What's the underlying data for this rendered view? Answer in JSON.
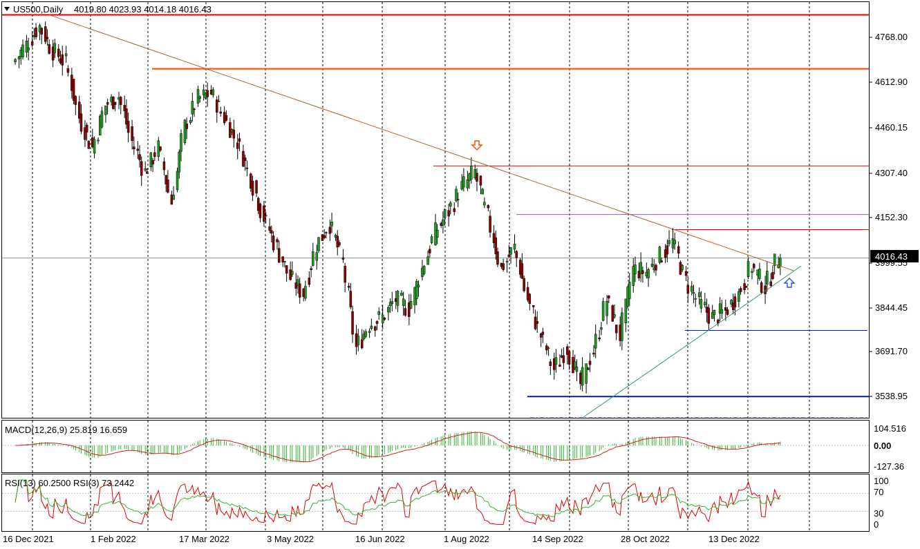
{
  "header": {
    "symbol": "US500,Daily",
    "ohlc": "4019.80 4023.93 4014.18 4016.43"
  },
  "price_scale": {
    "ticks": [
      "4768.00",
      "4612.90",
      "4460.15",
      "4307.40",
      "4152.30",
      "3999.55",
      "3844.45",
      "3691.70",
      "3538.95"
    ],
    "current_label": "4016.43"
  },
  "time_axis": {
    "labels": [
      "16 Dec 2021",
      "1 Feb 2022",
      "17 Mar 2022",
      "3 May 2022",
      "16 Jun 2022",
      "1 Aug 2022",
      "14 Sep 2022",
      "28 Oct 2022",
      "13 Dec 2022"
    ]
  },
  "macd_panel": {
    "title": "MACD(12,26,9) 25.819 16.659",
    "ticks": [
      "104.516",
      "0.00",
      "-127.36"
    ]
  },
  "rsi_panel": {
    "title": "RSI(13) 60.2500  RSI(3) 73.2442",
    "ticks": [
      "100",
      "70",
      "30",
      "0"
    ]
  },
  "colors": {
    "bull": "#1e9e1e",
    "bear": "#8b0000",
    "resistance": "#e00000",
    "support": "#0018c8",
    "trend_down": "#b4642d",
    "trend_up": "#2e9a6e",
    "purple": "#a050e0",
    "macd_hist": "#32b432",
    "macd_signal": "#d21e1e"
  },
  "markers": {
    "down_arrow": "arrow-down-icon",
    "up_arrow": "arrow-up-icon"
  },
  "chart_data": {
    "type": "candlestick",
    "title": "US500,Daily",
    "y_range": [
      3490,
      4860
    ],
    "candles_weekly_closes": [
      {
        "date": "2021-12-16",
        "close": 4660
      },
      {
        "date": "2021-12-23",
        "close": 4720
      },
      {
        "date": "2021-12-30",
        "close": 4780
      },
      {
        "date": "2022-01-06",
        "close": 4700
      },
      {
        "date": "2022-01-13",
        "close": 4660
      },
      {
        "date": "2022-01-20",
        "close": 4480
      },
      {
        "date": "2022-01-27",
        "close": 4380
      },
      {
        "date": "2022-02-03",
        "close": 4520
      },
      {
        "date": "2022-02-10",
        "close": 4550
      },
      {
        "date": "2022-02-17",
        "close": 4400
      },
      {
        "date": "2022-02-24",
        "close": 4300
      },
      {
        "date": "2022-03-03",
        "close": 4380
      },
      {
        "date": "2022-03-10",
        "close": 4200
      },
      {
        "date": "2022-03-17",
        "close": 4450
      },
      {
        "date": "2022-03-24",
        "close": 4540
      },
      {
        "date": "2022-03-31",
        "close": 4560
      },
      {
        "date": "2022-04-07",
        "close": 4480
      },
      {
        "date": "2022-04-14",
        "close": 4400
      },
      {
        "date": "2022-04-21",
        "close": 4280
      },
      {
        "date": "2022-04-28",
        "close": 4150
      },
      {
        "date": "2022-05-05",
        "close": 4050
      },
      {
        "date": "2022-05-12",
        "close": 3950
      },
      {
        "date": "2022-05-19",
        "close": 3900
      },
      {
        "date": "2022-05-26",
        "close": 4060
      },
      {
        "date": "2022-06-02",
        "close": 4130
      },
      {
        "date": "2022-06-09",
        "close": 4000
      },
      {
        "date": "2022-06-16",
        "close": 3720
      },
      {
        "date": "2022-06-23",
        "close": 3800
      },
      {
        "date": "2022-06-30",
        "close": 3820
      },
      {
        "date": "2022-07-07",
        "close": 3880
      },
      {
        "date": "2022-07-14",
        "close": 3850
      },
      {
        "date": "2022-07-21",
        "close": 3980
      },
      {
        "date": "2022-07-28",
        "close": 4100
      },
      {
        "date": "2022-08-04",
        "close": 4170
      },
      {
        "date": "2022-08-11",
        "close": 4250
      },
      {
        "date": "2022-08-18",
        "close": 4300
      },
      {
        "date": "2022-08-25",
        "close": 4150
      },
      {
        "date": "2022-09-01",
        "close": 3980
      },
      {
        "date": "2022-09-08",
        "close": 4050
      },
      {
        "date": "2022-09-15",
        "close": 3880
      },
      {
        "date": "2022-09-22",
        "close": 3760
      },
      {
        "date": "2022-09-29",
        "close": 3650
      },
      {
        "date": "2022-10-06",
        "close": 3720
      },
      {
        "date": "2022-10-13",
        "close": 3600
      },
      {
        "date": "2022-10-20",
        "close": 3710
      },
      {
        "date": "2022-10-27",
        "close": 3880
      },
      {
        "date": "2022-11-03",
        "close": 3760
      },
      {
        "date": "2022-11-10",
        "close": 3980
      },
      {
        "date": "2022-11-17",
        "close": 3970
      },
      {
        "date": "2022-11-24",
        "close": 4020
      },
      {
        "date": "2022-12-01",
        "close": 4070
      },
      {
        "date": "2022-12-08",
        "close": 3940
      },
      {
        "date": "2022-12-15",
        "close": 3870
      },
      {
        "date": "2022-12-22",
        "close": 3820
      },
      {
        "date": "2022-12-29",
        "close": 3840
      },
      {
        "date": "2023-01-05",
        "close": 3900
      },
      {
        "date": "2023-01-12",
        "close": 3990
      },
      {
        "date": "2023-01-19",
        "close": 3920
      },
      {
        "date": "2023-01-26",
        "close": 4016.43
      }
    ],
    "horizontal_levels": [
      {
        "price": 4818,
        "color": "#e00000"
      },
      {
        "price": 4640,
        "color": "#ff4500"
      },
      {
        "price": 4320,
        "color": "#e00000"
      },
      {
        "price": 4160,
        "color": "#a050e0"
      },
      {
        "price": 4110,
        "color": "#e00000"
      },
      {
        "price": 4016.43,
        "color": "#7a9a8a"
      },
      {
        "price": 3778,
        "color": "#0018c8"
      },
      {
        "price": 3560,
        "color": "#0018c8"
      },
      {
        "price": 3490,
        "color": "#3a2a7a"
      }
    ],
    "trendlines": [
      {
        "from": {
          "date": "2022-01-03",
          "price": 4818
        },
        "to": {
          "date": "2023-02-02",
          "price": 3975
        },
        "color": "#b4642d"
      },
      {
        "from": {
          "date": "2022-10-13",
          "price": 3490
        },
        "to": {
          "date": "2023-02-06",
          "price": 3990
        },
        "color": "#2e9a6e"
      }
    ]
  }
}
